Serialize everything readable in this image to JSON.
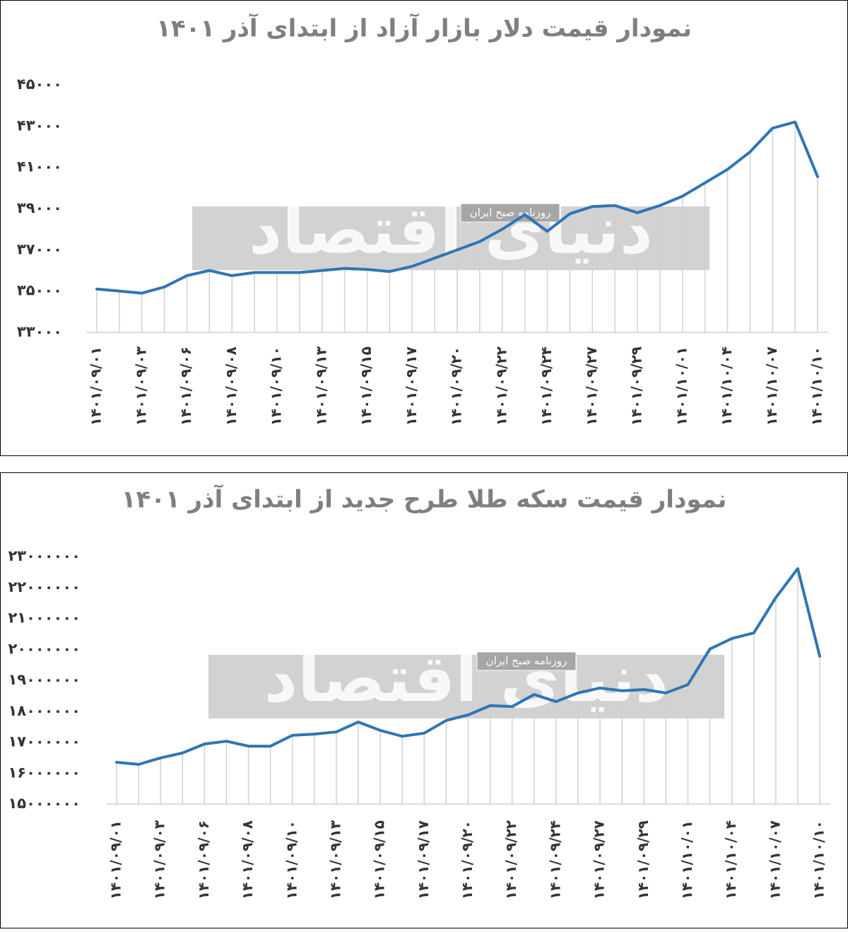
{
  "chart_data": [
    {
      "type": "line",
      "title": "نمودار قیمت دلار بازار آزاد از ابتدای آذر ۱۴۰۱",
      "watermark": "دنیای اقتصاد",
      "watermark_note": "روزنامه صبح ایران",
      "categories": [
        "۱۴۰۱/۰۹/۰۱",
        null,
        "۱۴۰۱/۰۹/۰۳",
        null,
        "۱۴۰۱/۰۹/۰۶",
        null,
        "۱۴۰۱/۰۹/۰۸",
        null,
        "۱۴۰۱/۰۹/۱۰",
        null,
        "۱۴۰۱/۰۹/۱۳",
        null,
        "۱۴۰۱/۰۹/۱۵",
        null,
        "۱۴۰۱/۰۹/۱۷",
        null,
        "۱۴۰۱/۰۹/۲۰",
        null,
        "۱۴۰۱/۰۹/۲۲",
        null,
        "۱۴۰۱/۰۹/۲۴",
        null,
        "۱۴۰۱/۰۹/۲۷",
        null,
        "۱۴۰۱/۰۹/۲۹",
        null,
        "۱۴۰۱/۱۰/۰۱",
        null,
        "۱۴۰۱/۱۰/۰۴",
        null,
        "۱۴۰۱/۱۰/۰۷",
        null,
        "۱۴۰۱/۱۰/۱۰"
      ],
      "values": [
        35100,
        35000,
        34900,
        35200,
        35750,
        36000,
        35750,
        35900,
        35900,
        35900,
        36000,
        36100,
        36050,
        35950,
        36200,
        36600,
        37000,
        37400,
        38000,
        38700,
        37900,
        38750,
        39100,
        39150,
        38800,
        39150,
        39600,
        40250,
        40900,
        41750,
        42900,
        43200,
        40550
      ],
      "color": "#2e75b6",
      "ylim": [
        33000,
        45000
      ],
      "yticks": [
        {
          "value": 33000,
          "label": "۳۳۰۰۰"
        },
        {
          "value": 35000,
          "label": "۳۵۰۰۰"
        },
        {
          "value": 37000,
          "label": "۳۷۰۰۰"
        },
        {
          "value": 39000,
          "label": "۳۹۰۰۰"
        },
        {
          "value": 41000,
          "label": "۴۱۰۰۰"
        },
        {
          "value": 43000,
          "label": "۴۳۰۰۰"
        },
        {
          "value": 45000,
          "label": "۴۵۰۰۰"
        }
      ],
      "grid": false
    },
    {
      "type": "line",
      "title": "نمودار قیمت سکه طلا طرح جدید از ابتدای آذر ۱۴۰۱",
      "watermark": "دنیای اقتصاد",
      "watermark_note": "روزنامه صبح ایران",
      "categories": [
        "۱۴۰۱/۰۹/۰۱",
        null,
        "۱۴۰۱/۰۹/۰۳",
        null,
        "۱۴۰۱/۰۹/۰۶",
        null,
        "۱۴۰۱/۰۹/۰۸",
        null,
        "۱۴۰۱/۰۹/۱۰",
        null,
        "۱۴۰۱/۰۹/۱۳",
        null,
        "۱۴۰۱/۰۹/۱۵",
        null,
        "۱۴۰۱/۰۹/۱۷",
        null,
        "۱۴۰۱/۰۹/۲۰",
        null,
        "۱۴۰۱/۰۹/۲۲",
        null,
        "۱۴۰۱/۰۹/۲۴",
        null,
        "۱۴۰۱/۰۹/۲۷",
        null,
        "۱۴۰۱/۰۹/۲۹",
        null,
        "۱۴۰۱/۱۰/۰۱",
        null,
        "۱۴۰۱/۱۰/۰۴",
        null,
        "۱۴۰۱/۱۰/۰۷",
        null,
        "۱۴۰۱/۱۰/۱۰"
      ],
      "values": [
        16350000,
        16280000,
        16490000,
        16650000,
        16940000,
        17030000,
        16870000,
        16870000,
        17220000,
        17260000,
        17330000,
        17650000,
        17380000,
        17190000,
        17290000,
        17700000,
        17880000,
        18180000,
        18150000,
        18540000,
        18310000,
        18590000,
        18750000,
        18660000,
        18700000,
        18590000,
        18860000,
        20010000,
        20350000,
        20530000,
        21670000,
        22610000,
        19780000
      ],
      "color": "#2e75b6",
      "ylim": [
        15000000,
        23000000
      ],
      "yticks": [
        {
          "value": 15000000,
          "label": "۱۵۰۰۰۰۰۰"
        },
        {
          "value": 16000000,
          "label": "۱۶۰۰۰۰۰۰"
        },
        {
          "value": 17000000,
          "label": "۱۷۰۰۰۰۰۰"
        },
        {
          "value": 18000000,
          "label": "۱۸۰۰۰۰۰۰"
        },
        {
          "value": 19000000,
          "label": "۱۹۰۰۰۰۰۰"
        },
        {
          "value": 20000000,
          "label": "۲۰۰۰۰۰۰۰"
        },
        {
          "value": 21000000,
          "label": "۲۱۰۰۰۰۰۰"
        },
        {
          "value": 22000000,
          "label": "۲۲۰۰۰۰۰۰"
        },
        {
          "value": 23000000,
          "label": "۲۳۰۰۰۰۰۰"
        }
      ],
      "grid": false
    }
  ]
}
